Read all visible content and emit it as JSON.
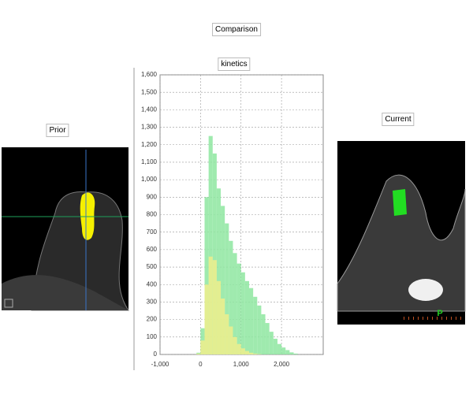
{
  "labels": {
    "comparison": "Comparison",
    "prior": "Prior",
    "current": "Current",
    "current_orientation": "P"
  },
  "chart_data": {
    "type": "histogram",
    "title": "kinetics",
    "bins": [
      -200,
      -100,
      0,
      100,
      200,
      300,
      400,
      500,
      600,
      700,
      800,
      900,
      1000,
      1100,
      1200,
      1300,
      1400,
      1500,
      1600,
      1700,
      1800,
      1900,
      2000,
      2100,
      2200,
      2300,
      2400
    ],
    "series": [
      {
        "color": "#8ee6a0",
        "values": [
          0,
          10,
          150,
          900,
          1250,
          1150,
          950,
          850,
          750,
          650,
          580,
          520,
          470,
          420,
          380,
          330,
          280,
          230,
          180,
          130,
          90,
          60,
          40,
          25,
          12,
          5
        ]
      },
      {
        "color": "#eeee8c",
        "values": [
          0,
          5,
          80,
          400,
          560,
          540,
          420,
          320,
          230,
          160,
          100,
          60,
          35,
          20,
          10,
          5,
          2,
          0,
          0,
          0,
          0,
          0,
          0,
          0,
          0,
          0
        ]
      }
    ],
    "xlim": [
      -1000,
      3030
    ],
    "ylim": [
      0,
      1600
    ],
    "xticks": [
      {
        "value": -1000,
        "label": "-1,000"
      },
      0,
      {
        "value": 1000,
        "label": "1,000"
      },
      {
        "value": 2000,
        "label": "2,000"
      }
    ],
    "yticks": [
      0,
      100,
      200,
      300,
      400,
      500,
      600,
      700,
      800,
      900,
      {
        "value": 1000,
        "label": "1,000"
      },
      {
        "value": 1100,
        "label": "1,100"
      },
      {
        "value": 1200,
        "label": "1,200"
      },
      {
        "value": 1300,
        "label": "1,300"
      },
      {
        "value": 1400,
        "label": "1,400"
      },
      {
        "value": 1500,
        "label": "1,500"
      },
      {
        "value": 1600,
        "label": "1,600"
      }
    ],
    "grid": true
  }
}
